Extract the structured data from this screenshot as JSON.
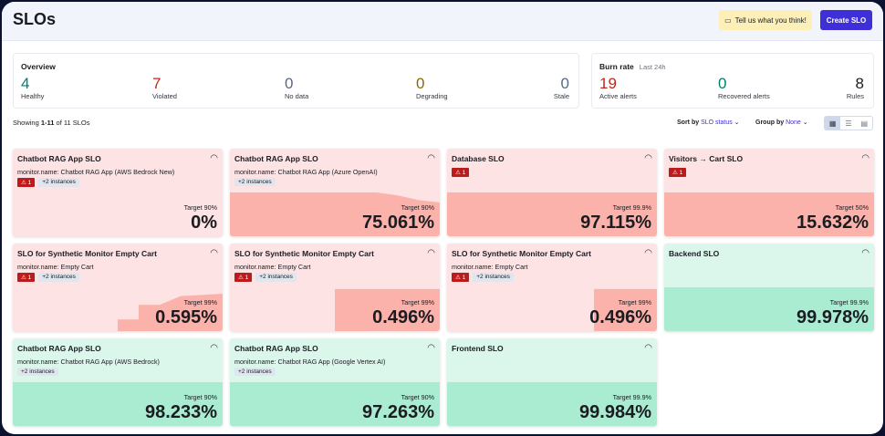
{
  "header": {
    "title": "SLOs",
    "feedback_label": "Tell us what you think!",
    "create_label": "Create SLO"
  },
  "overview": {
    "title": "Overview",
    "stats": [
      {
        "value": "4",
        "label": "Healthy",
        "color": "#017d73"
      },
      {
        "value": "7",
        "label": "Violated",
        "color": "#bd271e"
      },
      {
        "value": "0",
        "label": "No data",
        "color": "#5a6a85"
      },
      {
        "value": "0",
        "label": "Degrading",
        "color": "#8a6a0a"
      },
      {
        "value": "0",
        "label": "Stale",
        "color": "#5a6a85"
      }
    ]
  },
  "burn_rate": {
    "title": "Burn rate",
    "period": "Last 24h",
    "stats": [
      {
        "value": "19",
        "label": "Active alerts",
        "color": "#bd271e"
      },
      {
        "value": "0",
        "label": "Recovered alerts",
        "color": "#017d73"
      },
      {
        "value": "8",
        "label": "Rules",
        "color": "#1a1c21"
      }
    ]
  },
  "list": {
    "showing_prefix": "Showing ",
    "showing_range": "1-11",
    "showing_suffix": " of 11 SLOs",
    "sort_label": "Sort by",
    "sort_value": "SLO status",
    "group_label": "Group by",
    "group_value": "None",
    "view_modes": [
      "card",
      "list",
      "compact"
    ],
    "active_view": "card"
  },
  "cards": [
    {
      "name": "Chatbot RAG App SLO",
      "monitor": "monitor.name: Chatbot RAG App (AWS Bedrock New)",
      "alerts": "⚠ 1",
      "instances": "+2 instances",
      "target": "Target 90%",
      "value": "0%",
      "status": "violated",
      "spark": []
    },
    {
      "name": "Chatbot RAG App SLO",
      "monitor": "monitor.name: Chatbot RAG App (Azure OpenAI)",
      "alerts": "",
      "instances": "+2 instances",
      "target": "Target 90%",
      "value": "75.061%",
      "status": "violated",
      "spark": [
        75,
        75,
        75,
        75,
        75,
        75,
        75,
        75,
        70,
        62,
        58
      ]
    },
    {
      "name": "Database SLO",
      "monitor": "",
      "alerts": "⚠ 1",
      "instances": "",
      "target": "Target 99.9%",
      "value": "97.115%",
      "status": "violated",
      "spark": [
        75,
        75,
        75,
        75,
        75,
        75,
        75,
        75,
        75,
        75,
        75
      ]
    },
    {
      "name": "Visitors → Cart SLO",
      "monitor": "",
      "alerts": "⚠ 1",
      "instances": "",
      "target": "Target 50%",
      "value": "15.632%",
      "status": "violated",
      "spark": [
        75,
        75,
        75,
        75,
        75,
        75,
        75,
        75,
        75,
        75,
        75
      ]
    },
    {
      "name": "SLO for Synthetic Monitor Empty Cart",
      "monitor": "monitor.name: Empty Cart",
      "alerts": "⚠ 1",
      "instances": "+2 instances",
      "target": "Target 99%",
      "value": "0.595%",
      "status": "violated",
      "spark": [
        0,
        0,
        0,
        0,
        0,
        20,
        45,
        45,
        60,
        62,
        64
      ]
    },
    {
      "name": "SLO for Synthetic Monitor Empty Cart",
      "monitor": "monitor.name: Empty Cart",
      "alerts": "⚠ 1",
      "instances": "+2 instances",
      "target": "Target 99%",
      "value": "0.496%",
      "status": "violated",
      "spark": [
        0,
        0,
        0,
        0,
        0,
        72,
        72,
        72,
        72,
        72,
        72
      ]
    },
    {
      "name": "SLO for Synthetic Monitor Empty Cart",
      "monitor": "monitor.name: Empty Cart",
      "alerts": "⚠ 1",
      "instances": "+2 instances",
      "target": "Target 99%",
      "value": "0.496%",
      "status": "violated",
      "spark": [
        0,
        0,
        0,
        0,
        0,
        0,
        0,
        72,
        72,
        72,
        72
      ]
    },
    {
      "name": "Backend SLO",
      "monitor": "",
      "alerts": "",
      "instances": "",
      "target": "Target 99.9%",
      "value": "99.978%",
      "status": "healthy",
      "spark": [
        75,
        75,
        75,
        75,
        75,
        75,
        75,
        75,
        75,
        75,
        75
      ]
    },
    {
      "name": "Chatbot RAG App SLO",
      "monitor": "monitor.name: Chatbot RAG App (AWS Bedrock)",
      "alerts": "",
      "instances": "+2 instances",
      "target": "Target 90%",
      "value": "98.233%",
      "status": "healthy",
      "spark": [
        75,
        75,
        75,
        75,
        75,
        75,
        75,
        75,
        75,
        75,
        75
      ]
    },
    {
      "name": "Chatbot RAG App SLO",
      "monitor": "monitor.name: Chatbot RAG App (Google Vertex AI)",
      "alerts": "",
      "instances": "+2 instances",
      "target": "Target 90%",
      "value": "97.263%",
      "status": "healthy",
      "spark": [
        75,
        75,
        75,
        75,
        75,
        75,
        75,
        75,
        75,
        75,
        75
      ]
    },
    {
      "name": "Frontend SLO",
      "monitor": "",
      "alerts": "",
      "instances": "",
      "target": "Target 99.9%",
      "value": "99.984%",
      "status": "healthy",
      "spark": [
        75,
        75,
        75,
        75,
        75,
        75,
        75,
        75,
        75,
        75,
        75
      ]
    }
  ],
  "colors": {
    "violated_bg": "#fde3e3",
    "violated_fill": "#fbb2ab",
    "healthy_bg": "#dbf6eb",
    "healthy_fill": "#a9ecd2",
    "accent": "#3f2fd9"
  }
}
